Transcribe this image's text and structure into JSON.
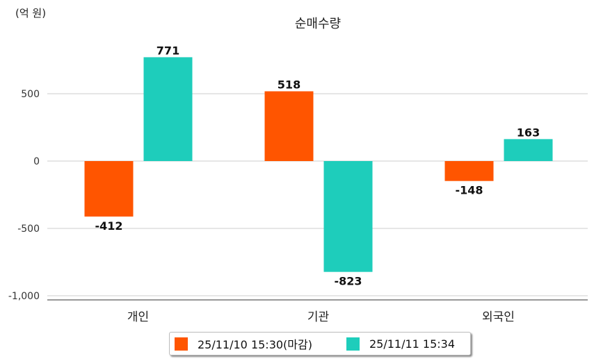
{
  "chart_data": {
    "type": "bar",
    "title": "순매수량",
    "ylabel": "(억 원)",
    "categories": [
      "개인",
      "기관",
      "외국인"
    ],
    "series": [
      {
        "name": "25/11/10 15:30(마감)",
        "color": "#FF5500",
        "values": [
          -412,
          518,
          -148
        ]
      },
      {
        "name": "25/11/11 15:34",
        "color": "#1ECDBB",
        "values": [
          771,
          -823,
          163
        ]
      }
    ],
    "yticks": [
      500,
      0,
      -500,
      -1000
    ],
    "ytick_labels": [
      "500",
      "0",
      "-500",
      "-1,000"
    ],
    "ylim": [
      -1000,
      1000
    ],
    "grid": true,
    "legend_position": "bottom"
  }
}
